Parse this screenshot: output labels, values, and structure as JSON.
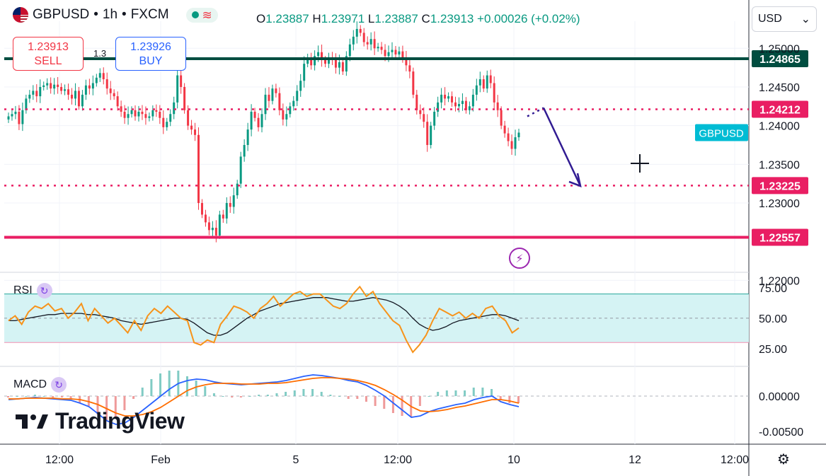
{
  "header": {
    "symbol": "GBPUSD",
    "separator1": "•",
    "interval": "1h",
    "separator2": "•",
    "exchange": "FXCM",
    "status_wave": "≋",
    "open_label": "O",
    "open": "1.23887",
    "high_label": "H",
    "high": "1.23971",
    "low_label": "L",
    "low": "1.23887",
    "close_label": "C",
    "close": "1.23913",
    "change": "+0.00026 (+0.02%)"
  },
  "trade": {
    "sell_price": "1.23913",
    "sell_label": "SELL",
    "buy_price": "1.23926",
    "buy_label": "BUY",
    "spread": "1.3"
  },
  "currency_select": {
    "value": "USD",
    "chevron": "⌄"
  },
  "rsi_label": "RSI",
  "macd_label": "MACD",
  "logo_text": "TradingView",
  "settings_icon": "⚙",
  "lightning_icon": "⚡",
  "colors": {
    "up": "#089981",
    "down": "#f23645",
    "resistance": "#004d40",
    "level": "#e91e63",
    "rsi": "#f7931a",
    "macd": "#2962ff",
    "signal": "#ff6d00",
    "arrow": "#311b92",
    "rsi_band": "#d5f3f4"
  },
  "chart_data": {
    "type": "candlestick",
    "symbol": "GBPUSD",
    "interval": "1h",
    "ylim": [
      1.2215,
      1.2535
    ],
    "price_axis_ticks": [
      "1.25000",
      "1.24500",
      "1.24000",
      "1.23500",
      "1.23000",
      "1.22000"
    ],
    "time_axis_ticks": [
      "12:00",
      "Feb",
      "5",
      "12:00",
      "10",
      "12",
      "12:00"
    ],
    "current_price_label": "GBPUSD",
    "levels": [
      {
        "label": "1.24865",
        "value": 1.24865,
        "style": "solid",
        "role": "resistance"
      },
      {
        "label": "1.24212",
        "value": 1.24212,
        "style": "dotted",
        "role": "level"
      },
      {
        "label": "1.23225",
        "value": 1.23225,
        "style": "dotted",
        "role": "target"
      },
      {
        "label": "1.22557",
        "value": 1.22557,
        "style": "solid",
        "role": "support"
      }
    ],
    "projection": {
      "from": 1.2423,
      "to": 1.2322
    },
    "closes": [
      1.2412,
      1.2415,
      1.2418,
      1.2402,
      1.242,
      1.2435,
      1.244,
      1.2445,
      1.2438,
      1.245,
      1.2452,
      1.2455,
      1.2448,
      1.2453,
      1.245,
      1.2445,
      1.2447,
      1.244,
      1.2435,
      1.2445,
      1.2425,
      1.244,
      1.2452,
      1.2448,
      1.2455,
      1.2462,
      1.2468,
      1.246,
      1.2448,
      1.2442,
      1.2438,
      1.2425,
      1.2418,
      1.241,
      1.2415,
      1.242,
      1.2412,
      1.2418,
      1.2415,
      1.241,
      1.2412,
      1.242,
      1.2418,
      1.241,
      1.2398,
      1.2405,
      1.2415,
      1.243,
      1.2465,
      1.245,
      1.242,
      1.24,
      1.2395,
      1.2388,
      1.23,
      1.2285,
      1.2275,
      1.2265,
      1.2268,
      1.2258,
      1.2285,
      1.228,
      1.23,
      1.2295,
      1.231,
      1.2325,
      1.236,
      1.2375,
      1.2395,
      1.2418,
      1.241,
      1.2398,
      1.2415,
      1.244,
      1.2432,
      1.2448,
      1.2442,
      1.242,
      1.2408,
      1.2415,
      1.2425,
      1.2432,
      1.2445,
      1.2458,
      1.248,
      1.2488,
      1.2478,
      1.249,
      1.2495,
      1.2485,
      1.248,
      1.2488,
      1.2485,
      1.2475,
      1.2482,
      1.247,
      1.249,
      1.2505,
      1.2515,
      1.2525,
      1.252,
      1.2508,
      1.2505,
      1.2512,
      1.25,
      1.2502,
      1.2498,
      1.249,
      1.2495,
      1.2498,
      1.2492,
      1.2496,
      1.2488,
      1.2478,
      1.247,
      1.244,
      1.242,
      1.2415,
      1.2405,
      1.2375,
      1.24,
      1.2418,
      1.243,
      1.244,
      1.2435,
      1.2438,
      1.243,
      1.2425,
      1.2428,
      1.2432,
      1.242,
      1.2425,
      1.244,
      1.2452,
      1.246,
      1.2448,
      1.2465,
      1.2455,
      1.243,
      1.242,
      1.24,
      1.239,
      1.238,
      1.237,
      1.2385,
      1.2391
    ],
    "rsi": {
      "ylim": [
        15,
        82
      ],
      "ticks": [
        "75.00",
        "50.00",
        "25.00"
      ],
      "band": [
        30,
        70
      ],
      "values": [
        48,
        52,
        45,
        55,
        60,
        58,
        62,
        56,
        58,
        50,
        55,
        62,
        48,
        58,
        52,
        46,
        50,
        44,
        38,
        48,
        40,
        52,
        58,
        54,
        60,
        55,
        50,
        48,
        30,
        28,
        32,
        30,
        45,
        52,
        60,
        58,
        55,
        50,
        58,
        62,
        68,
        60,
        65,
        70,
        72,
        68,
        70,
        70,
        65,
        60,
        58,
        62,
        70,
        76,
        68,
        72,
        62,
        55,
        48,
        44,
        32,
        22,
        28,
        36,
        48,
        58,
        55,
        52,
        55,
        50,
        54,
        50,
        58,
        60,
        52,
        48,
        38,
        42
      ],
      "ma_values": [
        48,
        48,
        49,
        50,
        51,
        52,
        53,
        53,
        54,
        54,
        54,
        54,
        53,
        53,
        52,
        51,
        50,
        48,
        47,
        46,
        45,
        46,
        47,
        48,
        49,
        50,
        50,
        49,
        46,
        42,
        38,
        36,
        36,
        38,
        42,
        46,
        50,
        53,
        56,
        58,
        60,
        62,
        63,
        64,
        65,
        66,
        67,
        67,
        67,
        66,
        65,
        64,
        64,
        65,
        66,
        67,
        66,
        65,
        63,
        60,
        56,
        50,
        45,
        42,
        40,
        41,
        43,
        46,
        48,
        49,
        50,
        51,
        52,
        53,
        53,
        52,
        50,
        48
      ]
    },
    "macd": {
      "ylim": [
        -0.0062,
        0.0035
      ],
      "ticks": [
        "0.00000",
        "-0.00500"
      ],
      "macd": [
        -0.0005,
        -0.0004,
        -0.0003,
        -0.0002,
        -0.0003,
        -0.0004,
        -0.0005,
        -0.0006,
        -0.001,
        -0.0015,
        -0.0025,
        -0.0035,
        -0.004,
        -0.0038,
        -0.003,
        -0.002,
        -0.001,
        0.0,
        0.001,
        0.0018,
        0.0022,
        0.0024,
        0.0023,
        0.002,
        0.0018,
        0.0017,
        0.0016,
        0.0017,
        0.0018,
        0.0019,
        0.002,
        0.0022,
        0.0025,
        0.0028,
        0.003,
        0.0029,
        0.0027,
        0.0025,
        0.0022,
        0.002,
        0.0015,
        0.0008,
        0.0,
        -0.001,
        -0.002,
        -0.003,
        -0.0028,
        -0.0022,
        -0.0018,
        -0.0015,
        -0.0012,
        -0.001,
        -0.0005,
        -0.0002,
        0.0,
        -0.0008,
        -0.0012,
        -0.0015
      ],
      "signal": [
        -0.0004,
        -0.0004,
        -0.0003,
        -0.0003,
        -0.0003,
        -0.0003,
        -0.0004,
        -0.0004,
        -0.0005,
        -0.0008,
        -0.0012,
        -0.0018,
        -0.0024,
        -0.0028,
        -0.0028,
        -0.0026,
        -0.0022,
        -0.0016,
        -0.0008,
        0.0,
        0.0008,
        0.0013,
        0.0016,
        0.0018,
        0.0018,
        0.0018,
        0.0017,
        0.0017,
        0.0017,
        0.0018,
        0.0018,
        0.0019,
        0.0021,
        0.0023,
        0.0025,
        0.0026,
        0.0026,
        0.0025,
        0.0024,
        0.0022,
        0.0019,
        0.0015,
        0.0009,
        0.0002,
        -0.0006,
        -0.0015,
        -0.0021,
        -0.0022,
        -0.0021,
        -0.0019,
        -0.0016,
        -0.0014,
        -0.0011,
        -0.0008,
        -0.0005,
        -0.0005,
        -0.0007,
        -0.001
      ]
    }
  }
}
